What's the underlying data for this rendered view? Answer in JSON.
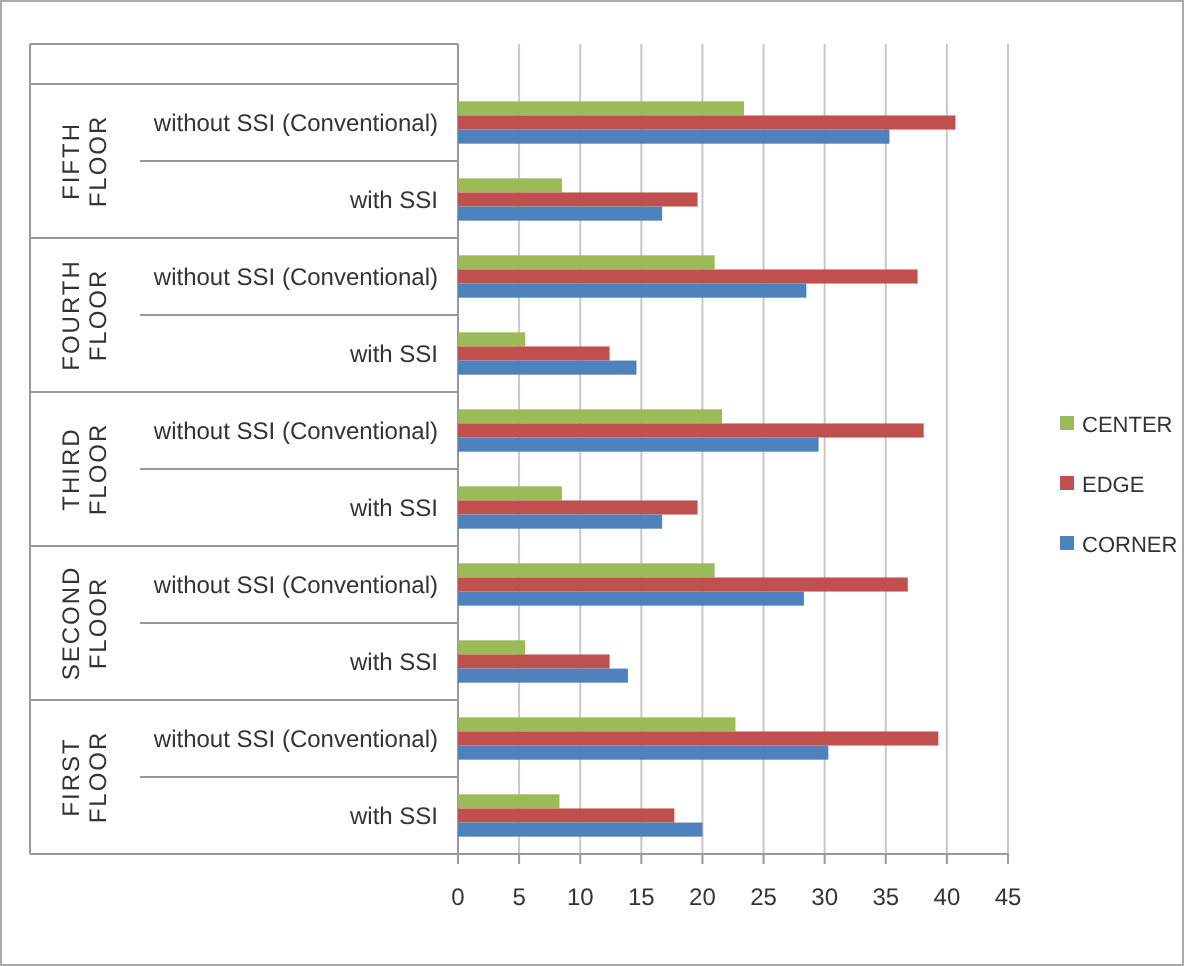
{
  "chart_data": {
    "type": "bar",
    "orientation": "horizontal",
    "categories": [
      "without SSI (Conventional)",
      "with SSI",
      "without SSI (Conventional)",
      "with SSI",
      "without SSI (Conventional)",
      "with SSI",
      "without SSI (Conventional)",
      "with SSI",
      "without SSI (Conventional)",
      "with SSI"
    ],
    "annotations": [
      "FIFTH FLOOR",
      "FOURTH FLOOR",
      "THIRD FLOOR",
      "SECOND FLOOR",
      "FIRST FLOOR"
    ],
    "series": [
      {
        "name": "CENTER",
        "color": "#9bbb59",
        "values": [
          23.4,
          8.5,
          21,
          5.5,
          21.6,
          8.5,
          21,
          5.5,
          22.7,
          8.3
        ]
      },
      {
        "name": "EDGE",
        "color": "#c0504d",
        "values": [
          40.7,
          19.6,
          37.6,
          12.4,
          38.1,
          19.6,
          36.8,
          12.4,
          39.3,
          17.7
        ]
      },
      {
        "name": "CORNER",
        "color": "#4f81bd",
        "values": [
          35.3,
          16.7,
          28.5,
          14.6,
          29.5,
          16.7,
          28.3,
          13.9,
          30.3,
          20
        ]
      }
    ],
    "xlim": [
      0,
      45
    ],
    "xticks": [
      0,
      5,
      10,
      15,
      20,
      25,
      30,
      35,
      40,
      45
    ],
    "grid": "x",
    "legend": "right"
  }
}
